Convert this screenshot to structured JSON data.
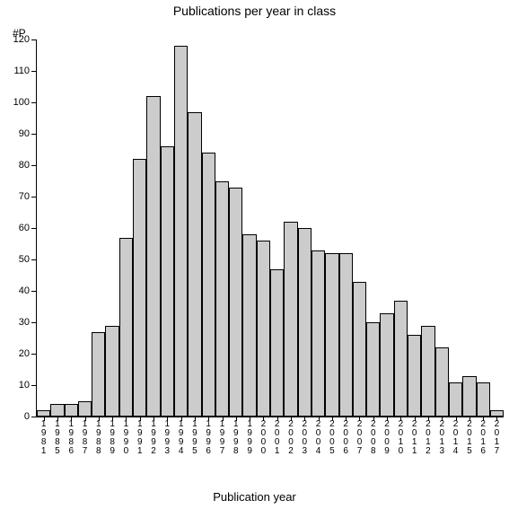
{
  "chart": {
    "type": "bar",
    "title": "Publications per year in class",
    "ylabel": "#P",
    "xlabel": "Publication year",
    "title_fontsize": 14,
    "label_fontsize": 12,
    "tick_fontsize": 11,
    "background_color": "#ffffff",
    "bar_fill": "#cccccc",
    "bar_border": "#000000",
    "axis_color": "#000000",
    "ylim": [
      0,
      120
    ],
    "ytick_step": 10,
    "yticks": [
      0,
      10,
      20,
      30,
      40,
      50,
      60,
      70,
      80,
      90,
      100,
      110,
      120
    ],
    "categories": [
      "1981",
      "1985",
      "1986",
      "1987",
      "1988",
      "1989",
      "1990",
      "1991",
      "1992",
      "1993",
      "1994",
      "1995",
      "1996",
      "1997",
      "1998",
      "1999",
      "2000",
      "2001",
      "2002",
      "2003",
      "2004",
      "2005",
      "2006",
      "2007",
      "2008",
      "2009",
      "2010",
      "2011",
      "2012",
      "2013",
      "2014",
      "2015",
      "2016",
      "2017"
    ],
    "values": [
      2,
      4,
      4,
      5,
      27,
      29,
      57,
      82,
      102,
      86,
      118,
      97,
      84,
      75,
      73,
      58,
      56,
      47,
      62,
      60,
      53,
      52,
      52,
      43,
      30,
      33,
      37,
      26,
      29,
      22,
      11,
      13,
      11,
      2
    ],
    "bar_width": 1.0
  }
}
